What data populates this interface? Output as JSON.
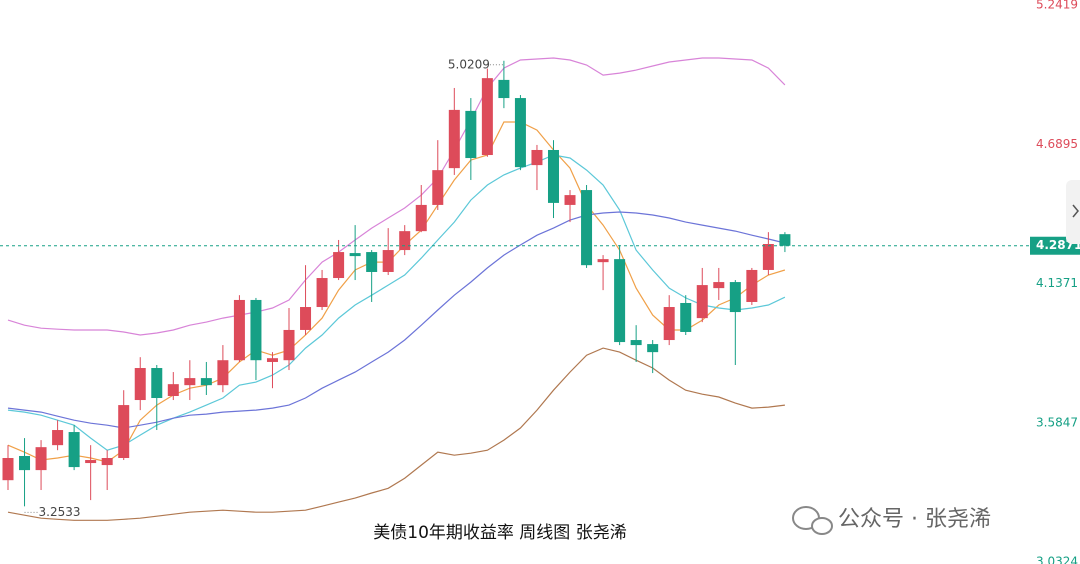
{
  "chart_data": {
    "type": "candlestick",
    "caption": "美债10年期收益率 周线图 张尧浠",
    "watermark": "公众号 · 张尧浠",
    "ylim": [
      3.0245,
      5.262
    ],
    "yticks": [
      5.2419,
      4.6895,
      4.1371,
      3.5847,
      3.0324
    ],
    "up_color": "#dd4b5a",
    "down_color": "#16a085",
    "last_price_color": "#16a085",
    "open": [
      3.357,
      3.453,
      3.397,
      3.496,
      3.548,
      3.425,
      3.417,
      3.445,
      3.675,
      3.802,
      3.691,
      3.734,
      3.762,
      3.734,
      3.833,
      4.072,
      3.826,
      3.833,
      3.953,
      4.044,
      4.159,
      4.258,
      4.262,
      4.183,
      4.27,
      4.345,
      4.449,
      4.595,
      4.822,
      4.647,
      4.945,
      4.873,
      4.607,
      4.667,
      4.449,
      4.508,
      4.222,
      4.234,
      3.913,
      3.897,
      3.913,
      4.06,
      4.0,
      4.119,
      4.143,
      4.064,
      4.191,
      4.333
    ],
    "high": [
      3.496,
      3.524,
      3.516,
      3.595,
      3.576,
      3.496,
      3.476,
      3.714,
      3.845,
      3.814,
      3.786,
      3.833,
      3.826,
      3.893,
      4.091,
      4.08,
      3.865,
      4.04,
      4.21,
      4.191,
      4.31,
      4.369,
      4.27,
      4.357,
      4.369,
      4.528,
      4.706,
      4.913,
      4.873,
      4.99,
      5.0209,
      4.885,
      4.687,
      4.706,
      4.508,
      4.528,
      4.25,
      4.29,
      3.972,
      3.913,
      4.091,
      4.091,
      4.199,
      4.199,
      4.151,
      4.199,
      4.341,
      4.341
    ],
    "low": [
      3.318,
      3.2533,
      3.318,
      3.476,
      3.397,
      3.278,
      3.318,
      3.437,
      3.635,
      3.556,
      3.675,
      3.675,
      3.695,
      3.706,
      3.826,
      3.754,
      3.722,
      3.794,
      3.933,
      4.032,
      4.151,
      4.151,
      4.064,
      4.171,
      4.25,
      4.341,
      4.429,
      4.568,
      4.548,
      4.64,
      4.833,
      4.587,
      4.508,
      4.397,
      4.381,
      4.199,
      4.111,
      3.893,
      3.826,
      3.782,
      3.893,
      3.933,
      3.984,
      4.072,
      3.814,
      4.052,
      4.171,
      4.262
    ],
    "close": [
      3.445,
      3.397,
      3.488,
      3.556,
      3.409,
      3.437,
      3.445,
      3.655,
      3.802,
      3.683,
      3.738,
      3.762,
      3.734,
      3.833,
      4.072,
      3.833,
      3.841,
      3.953,
      4.044,
      4.159,
      4.262,
      4.246,
      4.183,
      4.27,
      4.345,
      4.449,
      4.587,
      4.826,
      4.635,
      4.952,
      4.873,
      4.599,
      4.667,
      4.457,
      4.488,
      4.21,
      4.234,
      3.905,
      3.893,
      3.865,
      4.044,
      3.945,
      4.131,
      4.143,
      4.024,
      4.191,
      4.294,
      4.2871
    ],
    "series": [
      {
        "color": "#f0a048",
        "values": [
          3.496,
          3.468,
          3.437,
          3.445,
          3.456,
          3.445,
          3.429,
          3.476,
          3.595,
          3.655,
          3.695,
          3.722,
          3.734,
          3.762,
          3.826,
          3.873,
          3.853,
          3.873,
          3.933,
          4.0,
          4.111,
          4.191,
          4.222,
          4.222,
          4.29,
          4.349,
          4.449,
          4.548,
          4.627,
          4.647,
          4.778,
          4.778,
          4.746,
          4.667,
          4.595,
          4.449,
          4.369,
          4.27,
          4.119,
          4.012,
          3.953,
          3.953,
          3.992,
          4.052,
          4.08,
          4.131,
          4.171,
          4.191
        ]
      },
      {
        "color": "#5cc8d8",
        "values": [
          3.635,
          3.627,
          3.615,
          3.595,
          3.575,
          3.524,
          3.476,
          3.496,
          3.536,
          3.575,
          3.603,
          3.627,
          3.655,
          3.683,
          3.734,
          3.746,
          3.774,
          3.814,
          3.881,
          3.933,
          4.0,
          4.052,
          4.091,
          4.131,
          4.171,
          4.238,
          4.31,
          4.381,
          4.468,
          4.528,
          4.568,
          4.595,
          4.619,
          4.647,
          4.635,
          4.587,
          4.528,
          4.429,
          4.27,
          4.191,
          4.119,
          4.08,
          4.052,
          4.04,
          4.032,
          4.04,
          4.052,
          4.083
        ]
      },
      {
        "color": "#6c74d8",
        "values": [
          3.643,
          3.635,
          3.627,
          3.611,
          3.595,
          3.583,
          3.575,
          3.564,
          3.575,
          3.587,
          3.603,
          3.615,
          3.619,
          3.627,
          3.631,
          3.635,
          3.643,
          3.655,
          3.683,
          3.722,
          3.754,
          3.786,
          3.826,
          3.865,
          3.913,
          3.972,
          4.032,
          4.091,
          4.143,
          4.199,
          4.25,
          4.29,
          4.329,
          4.357,
          4.389,
          4.409,
          4.417,
          4.421,
          4.417,
          4.409,
          4.397,
          4.381,
          4.369,
          4.357,
          4.345,
          4.329,
          4.314,
          4.298
        ]
      },
      {
        "color": "#d884d8",
        "values": [
          3.992,
          3.972,
          3.96,
          3.956,
          3.953,
          3.953,
          3.953,
          3.945,
          3.933,
          3.941,
          3.953,
          3.972,
          3.984,
          4.0,
          4.012,
          4.024,
          4.04,
          4.072,
          4.151,
          4.222,
          4.262,
          4.31,
          4.357,
          4.397,
          4.437,
          4.488,
          4.556,
          4.667,
          4.786,
          4.913,
          4.992,
          5.024,
          5.028,
          5.032,
          5.024,
          5.004,
          4.964,
          4.972,
          4.984,
          5.0,
          5.016,
          5.024,
          5.032,
          5.032,
          5.028,
          5.024,
          4.992,
          4.925
        ]
      },
      {
        "color": "#b07850",
        "values": [
          3.23,
          3.218,
          3.206,
          3.202,
          3.198,
          3.198,
          3.198,
          3.202,
          3.206,
          3.214,
          3.222,
          3.23,
          3.234,
          3.238,
          3.234,
          3.23,
          3.23,
          3.234,
          3.238,
          3.254,
          3.27,
          3.286,
          3.306,
          3.325,
          3.365,
          3.417,
          3.468,
          3.456,
          3.464,
          3.476,
          3.516,
          3.564,
          3.635,
          3.714,
          3.786,
          3.853,
          3.881,
          3.865,
          3.833,
          3.802,
          3.754,
          3.714,
          3.698,
          3.687,
          3.663,
          3.643,
          3.647,
          3.655
        ]
      }
    ]
  }
}
